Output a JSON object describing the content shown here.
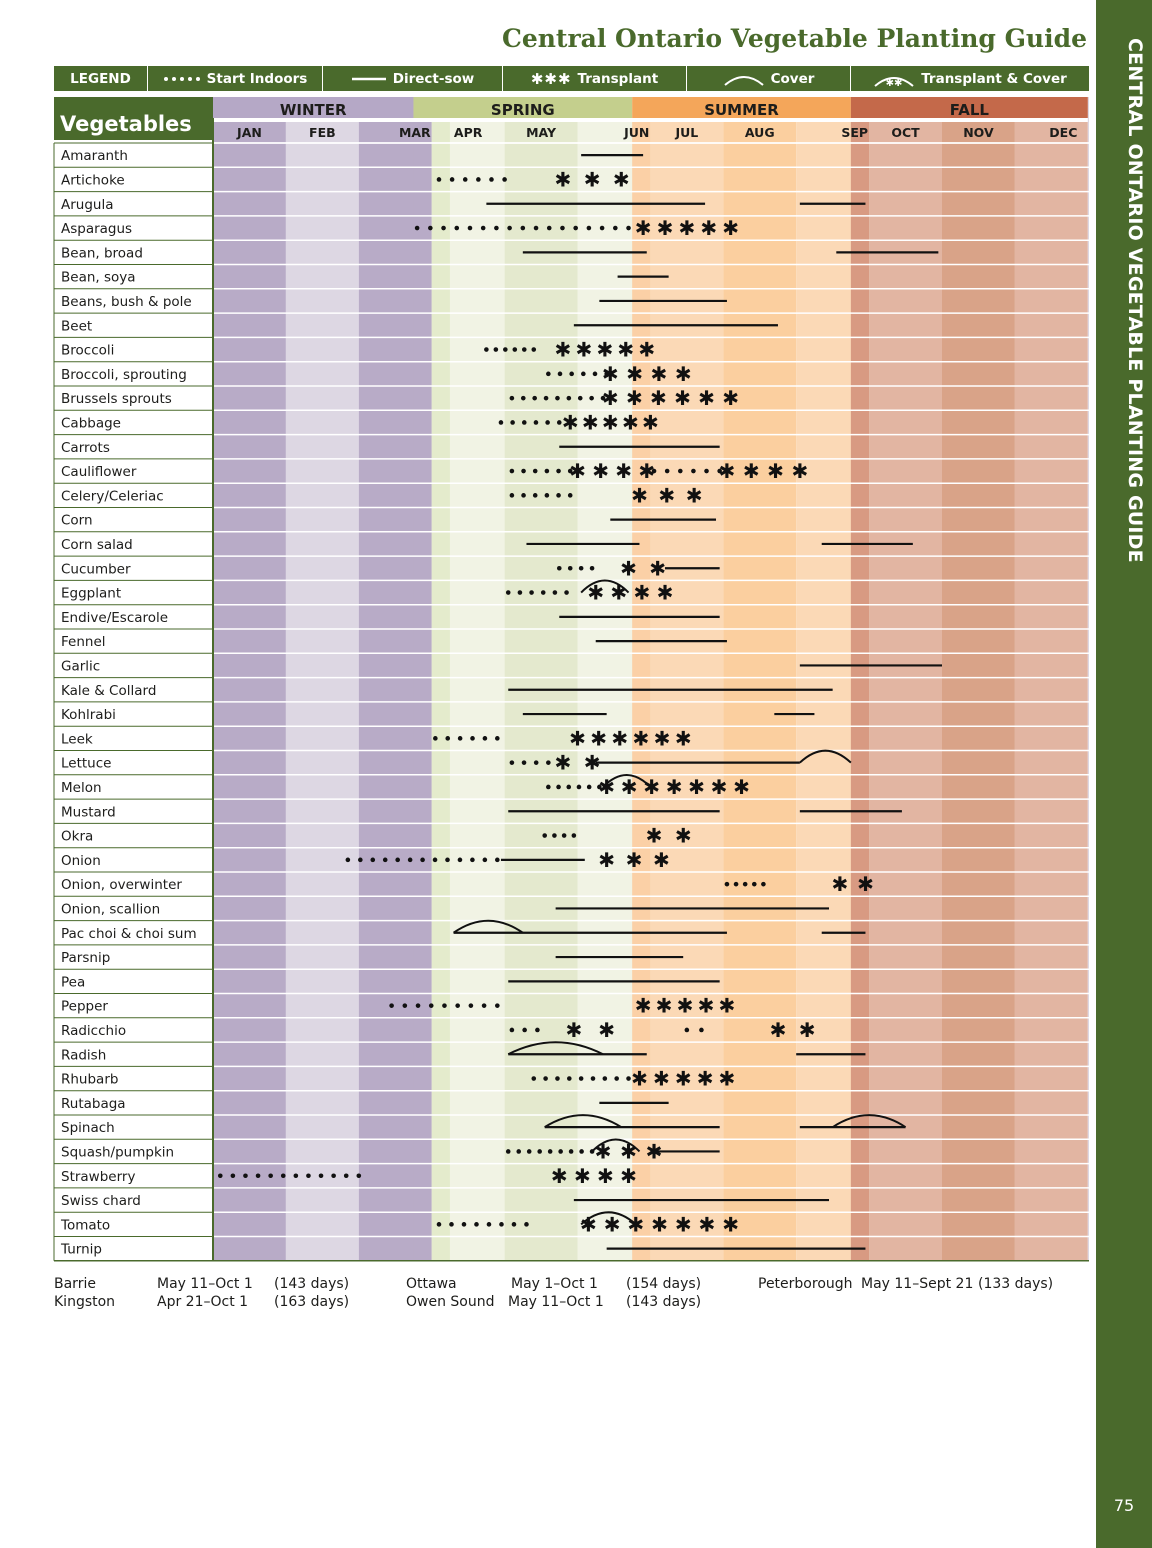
{
  "title": "Central Ontario Vegetable Planting Guide",
  "side_title": "CENTRAL ONTARIO VEGETABLE PLANTING GUIDE",
  "page_number": "75",
  "legend": {
    "label": "LEGEND",
    "start_indoors": "Start Indoors",
    "direct_sow": "Direct-sow",
    "transplant": "Transplant",
    "cover": "Cover",
    "transplant_cover": "Transplant & Cover"
  },
  "table_header": "Vegetables",
  "seasons": [
    {
      "name": "WINTER",
      "color": "#b5a8c6"
    },
    {
      "name": "SPRING",
      "color": "#c4cf8d"
    },
    {
      "name": "SUMMER",
      "color": "#f4a65a"
    },
    {
      "name": "FALL",
      "color": "#c4694a"
    }
  ],
  "months": [
    "JAN",
    "FEB",
    "MAR",
    "APR",
    "MAY",
    "JUN",
    "JUL",
    "AUG",
    "SEP",
    "OCT",
    "NOV",
    "DEC"
  ],
  "rows": [
    {
      "name": "Amaranth",
      "marks": [
        {
          "t": "sow",
          "s": 5.05,
          "e": 5.9
        }
      ]
    },
    {
      "name": "Artichoke",
      "marks": [
        {
          "t": "dots",
          "s": 3.1,
          "e": 4.0,
          "n": 6
        },
        {
          "t": "star",
          "s": 4.8,
          "e": 5.6,
          "n": 3
        }
      ]
    },
    {
      "name": "Arugula",
      "marks": [
        {
          "t": "sow",
          "s": 3.75,
          "e": 6.75
        },
        {
          "t": "sow",
          "s": 8.05,
          "e": 8.95
        }
      ]
    },
    {
      "name": "Asparagus",
      "marks": [
        {
          "t": "dots",
          "s": 2.8,
          "e": 5.7,
          "n": 17
        },
        {
          "t": "star",
          "s": 5.9,
          "e": 7.1,
          "n": 5
        }
      ]
    },
    {
      "name": "Bean, broad",
      "marks": [
        {
          "t": "sow",
          "s": 4.25,
          "e": 5.95
        },
        {
          "t": "sow",
          "s": 8.55,
          "e": 9.95
        }
      ]
    },
    {
      "name": "Bean, soya",
      "marks": [
        {
          "t": "sow",
          "s": 5.55,
          "e": 6.25
        }
      ]
    },
    {
      "name": "Beans, bush & pole",
      "marks": [
        {
          "t": "sow",
          "s": 5.3,
          "e": 7.05
        }
      ]
    },
    {
      "name": "Beet",
      "marks": [
        {
          "t": "sow",
          "s": 4.95,
          "e": 7.75
        }
      ]
    },
    {
      "name": "Broccoli",
      "marks": [
        {
          "t": "dots",
          "s": 3.75,
          "e": 4.4,
          "n": 6
        },
        {
          "t": "star",
          "s": 4.8,
          "e": 5.95,
          "n": 5
        }
      ]
    },
    {
      "name": "Broccoli, sprouting",
      "marks": [
        {
          "t": "dots",
          "s": 4.6,
          "e": 5.4,
          "n": 6
        },
        {
          "t": "star",
          "s": 5.45,
          "e": 6.45,
          "n": 4
        }
      ]
    },
    {
      "name": "Brussels sprouts",
      "marks": [
        {
          "t": "dots",
          "s": 4.1,
          "e": 5.35,
          "n": 9
        },
        {
          "t": "star",
          "s": 5.45,
          "e": 7.1,
          "n": 6
        }
      ]
    },
    {
      "name": "Cabbage",
      "marks": [
        {
          "t": "dots",
          "s": 3.95,
          "e": 4.75,
          "n": 6
        },
        {
          "t": "star",
          "s": 4.9,
          "e": 6.0,
          "n": 5
        }
      ]
    },
    {
      "name": "Carrots",
      "marks": [
        {
          "t": "sow",
          "s": 4.75,
          "e": 6.95
        }
      ]
    },
    {
      "name": "Cauliflower",
      "marks": [
        {
          "t": "dots",
          "s": 4.1,
          "e": 4.9,
          "n": 6
        },
        {
          "t": "star",
          "s": 5.0,
          "e": 5.95,
          "n": 4
        },
        {
          "t": "dots",
          "s": 6.05,
          "e": 6.95,
          "n": 6
        },
        {
          "t": "star",
          "s": 7.05,
          "e": 8.05,
          "n": 4
        }
      ]
    },
    {
      "name": "Celery/Celeriac",
      "marks": [
        {
          "t": "dots",
          "s": 4.1,
          "e": 4.9,
          "n": 6
        },
        {
          "t": "star",
          "s": 5.85,
          "e": 6.6,
          "n": 3
        }
      ]
    },
    {
      "name": "Corn",
      "marks": [
        {
          "t": "sow",
          "s": 5.45,
          "e": 6.9
        }
      ]
    },
    {
      "name": "Corn salad",
      "marks": [
        {
          "t": "sow",
          "s": 4.3,
          "e": 5.85
        },
        {
          "t": "sow",
          "s": 8.35,
          "e": 9.6
        }
      ]
    },
    {
      "name": "Cucumber",
      "marks": [
        {
          "t": "dots",
          "s": 4.75,
          "e": 5.2,
          "n": 4
        },
        {
          "t": "star",
          "s": 5.7,
          "e": 6.1,
          "n": 2
        },
        {
          "t": "sow",
          "s": 6.2,
          "e": 6.95
        }
      ]
    },
    {
      "name": "Eggplant",
      "marks": [
        {
          "t": "dots",
          "s": 4.05,
          "e": 4.85,
          "n": 6
        },
        {
          "t": "cover",
          "s": 5.05,
          "e": 5.7
        },
        {
          "t": "star",
          "s": 5.25,
          "e": 6.2,
          "n": 4
        }
      ]
    },
    {
      "name": "Endive/Escarole",
      "marks": [
        {
          "t": "sow",
          "s": 4.75,
          "e": 6.95
        }
      ]
    },
    {
      "name": "Fennel",
      "marks": [
        {
          "t": "sow",
          "s": 5.25,
          "e": 7.05
        }
      ]
    },
    {
      "name": "Garlic",
      "marks": [
        {
          "t": "sow",
          "s": 8.05,
          "e": 10.0
        }
      ]
    },
    {
      "name": "Kale & Collard",
      "marks": [
        {
          "t": "sow",
          "s": 4.05,
          "e": 8.5
        }
      ]
    },
    {
      "name": "Kohlrabi",
      "marks": [
        {
          "t": "sow",
          "s": 4.25,
          "e": 5.4
        },
        {
          "t": "sow",
          "s": 7.7,
          "e": 8.25
        }
      ]
    },
    {
      "name": "Leek",
      "marks": [
        {
          "t": "dots",
          "s": 3.05,
          "e": 3.9,
          "n": 6
        },
        {
          "t": "star",
          "s": 5.0,
          "e": 6.45,
          "n": 6
        }
      ]
    },
    {
      "name": "Lettuce",
      "marks": [
        {
          "t": "dots",
          "s": 4.1,
          "e": 4.6,
          "n": 4
        },
        {
          "t": "star",
          "s": 4.8,
          "e": 5.2,
          "n": 2
        },
        {
          "t": "sow",
          "s": 5.25,
          "e": 8.05
        },
        {
          "t": "cover",
          "s": 8.05,
          "e": 8.75
        }
      ]
    },
    {
      "name": "Melon",
      "marks": [
        {
          "t": "dots",
          "s": 4.6,
          "e": 5.3,
          "n": 6
        },
        {
          "t": "cover",
          "s": 5.35,
          "e": 6.0
        },
        {
          "t": "star",
          "s": 5.4,
          "e": 7.25,
          "n": 7
        }
      ]
    },
    {
      "name": "Mustard",
      "marks": [
        {
          "t": "sow",
          "s": 4.05,
          "e": 6.95
        },
        {
          "t": "sow",
          "s": 8.05,
          "e": 9.45
        }
      ]
    },
    {
      "name": "Okra",
      "marks": [
        {
          "t": "dots",
          "s": 4.55,
          "e": 4.95,
          "n": 4
        },
        {
          "t": "star",
          "s": 6.05,
          "e": 6.45,
          "n": 2
        }
      ]
    },
    {
      "name": "Onion",
      "marks": [
        {
          "t": "dots",
          "s": 1.85,
          "e": 3.9,
          "n": 13
        },
        {
          "t": "sow",
          "s": 3.95,
          "e": 5.1
        },
        {
          "t": "star",
          "s": 5.4,
          "e": 6.15,
          "n": 3
        }
      ]
    },
    {
      "name": "Onion, overwinter",
      "marks": [
        {
          "t": "dots",
          "s": 7.05,
          "e": 7.55,
          "n": 5
        },
        {
          "t": "star",
          "s": 8.6,
          "e": 8.95,
          "n": 2
        }
      ]
    },
    {
      "name": "Onion, scallion",
      "marks": [
        {
          "t": "sow",
          "s": 4.7,
          "e": 8.45
        }
      ]
    },
    {
      "name": "Pac choi & choi sum",
      "marks": [
        {
          "t": "cover",
          "s": 3.3,
          "e": 4.25
        },
        {
          "t": "sow",
          "s": 3.3,
          "e": 7.05
        },
        {
          "t": "sow",
          "s": 8.35,
          "e": 8.95
        }
      ]
    },
    {
      "name": "Parsnip",
      "marks": [
        {
          "t": "sow",
          "s": 4.7,
          "e": 6.45
        }
      ]
    },
    {
      "name": "Pea",
      "marks": [
        {
          "t": "sow",
          "s": 4.05,
          "e": 6.95
        }
      ]
    },
    {
      "name": "Pepper",
      "marks": [
        {
          "t": "dots",
          "s": 2.45,
          "e": 3.9,
          "n": 9
        },
        {
          "t": "star",
          "s": 5.9,
          "e": 7.05,
          "n": 5
        }
      ]
    },
    {
      "name": "Radicchio",
      "marks": [
        {
          "t": "dots",
          "s": 4.1,
          "e": 4.45,
          "n": 3
        },
        {
          "t": "star",
          "s": 4.95,
          "e": 5.4,
          "n": 2
        },
        {
          "t": "dots",
          "s": 6.5,
          "e": 6.7,
          "n": 2
        },
        {
          "t": "star",
          "s": 7.75,
          "e": 8.15,
          "n": 2
        }
      ]
    },
    {
      "name": "Radish",
      "marks": [
        {
          "t": "cover",
          "s": 4.05,
          "e": 5.35
        },
        {
          "t": "sow",
          "s": 4.05,
          "e": 5.95
        },
        {
          "t": "sow",
          "s": 8.0,
          "e": 8.95
        }
      ]
    },
    {
      "name": "Rhubarb",
      "marks": [
        {
          "t": "dots",
          "s": 4.4,
          "e": 5.7,
          "n": 9
        },
        {
          "t": "star",
          "s": 5.85,
          "e": 7.05,
          "n": 5
        }
      ]
    },
    {
      "name": "Rutabaga",
      "marks": [
        {
          "t": "sow",
          "s": 5.3,
          "e": 6.25
        }
      ]
    },
    {
      "name": "Spinach",
      "marks": [
        {
          "t": "cover",
          "s": 4.55,
          "e": 5.6
        },
        {
          "t": "sow",
          "s": 4.55,
          "e": 6.95
        },
        {
          "t": "sow",
          "s": 8.05,
          "e": 9.5
        },
        {
          "t": "cover",
          "s": 8.5,
          "e": 9.5
        }
      ]
    },
    {
      "name": "Squash/pumpkin",
      "marks": [
        {
          "t": "dots",
          "s": 4.05,
          "e": 5.2,
          "n": 9
        },
        {
          "t": "cover",
          "s": 5.2,
          "e": 5.85
        },
        {
          "t": "star",
          "s": 5.35,
          "e": 6.05,
          "n": 3
        },
        {
          "t": "sow",
          "s": 6.0,
          "e": 6.95
        }
      ]
    },
    {
      "name": "Strawberry",
      "marks": [
        {
          "t": "dots",
          "s": 0.1,
          "e": 2.0,
          "n": 12
        },
        {
          "t": "star",
          "s": 4.75,
          "e": 5.7,
          "n": 4
        }
      ]
    },
    {
      "name": "Swiss chard",
      "marks": [
        {
          "t": "sow",
          "s": 4.95,
          "e": 8.45
        }
      ]
    },
    {
      "name": "Tomato",
      "marks": [
        {
          "t": "dots",
          "s": 3.1,
          "e": 4.3,
          "n": 8
        },
        {
          "t": "cover",
          "s": 5.05,
          "e": 5.8
        },
        {
          "t": "star",
          "s": 5.15,
          "e": 7.1,
          "n": 7
        }
      ]
    },
    {
      "name": "Turnip",
      "marks": [
        {
          "t": "sow",
          "s": 5.4,
          "e": 8.95
        }
      ]
    }
  ],
  "frost_dates": [
    {
      "city": "Barrie",
      "dates": "May 11–Oct 1",
      "days": "(143 days)"
    },
    {
      "city": "Kingston",
      "dates": "Apr 21–Oct 1",
      "days": "(163 days)"
    },
    {
      "city": "Ottawa",
      "dates": "May 1–Oct 1",
      "days": "(154 days)"
    },
    {
      "city": "Owen Sound",
      "dates": "May 11–Oct 1",
      "days": "(143 days)"
    },
    {
      "city": "Peterborough",
      "dates": "May 11–Sept 21",
      "days": "(133 days)"
    }
  ]
}
